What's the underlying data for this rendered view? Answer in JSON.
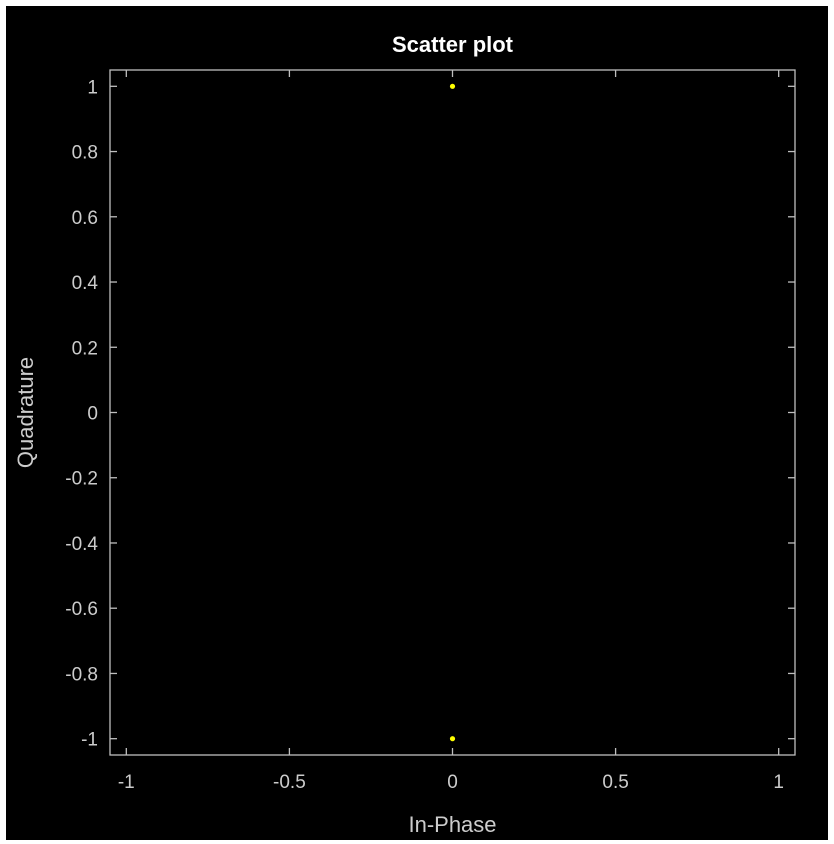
{
  "colors": {
    "figure_background": "#000000",
    "axes_background": "#000000",
    "axes_color": "#bfbfbf",
    "text_color": "#cccccc",
    "title_color": "#ffffff",
    "marker_color": "#ffff00"
  },
  "chart_data": {
    "type": "scatter",
    "title": "Scatter plot",
    "xlabel": "In-Phase",
    "ylabel": "Quadrature",
    "xlim": [
      -1.05,
      1.05
    ],
    "ylim": [
      -1.05,
      1.05
    ],
    "xticks": [
      -1,
      -0.5,
      0,
      0.5,
      1
    ],
    "xtick_labels": [
      "-1",
      "-0.5",
      "0",
      "0.5",
      "1"
    ],
    "yticks": [
      1,
      0.8,
      0.6,
      0.4,
      0.2,
      0,
      -0.2,
      -0.4,
      -0.6,
      -0.8,
      -1
    ],
    "ytick_labels": [
      "1",
      "0.8",
      "0.6",
      "0.4",
      "0.2",
      "0",
      "-0.2",
      "-0.4",
      "-0.6",
      "-0.8",
      "-1"
    ],
    "grid": false,
    "legend": "none",
    "points": [
      {
        "x": 0,
        "y": 1
      },
      {
        "x": 0,
        "y": -1
      }
    ]
  }
}
